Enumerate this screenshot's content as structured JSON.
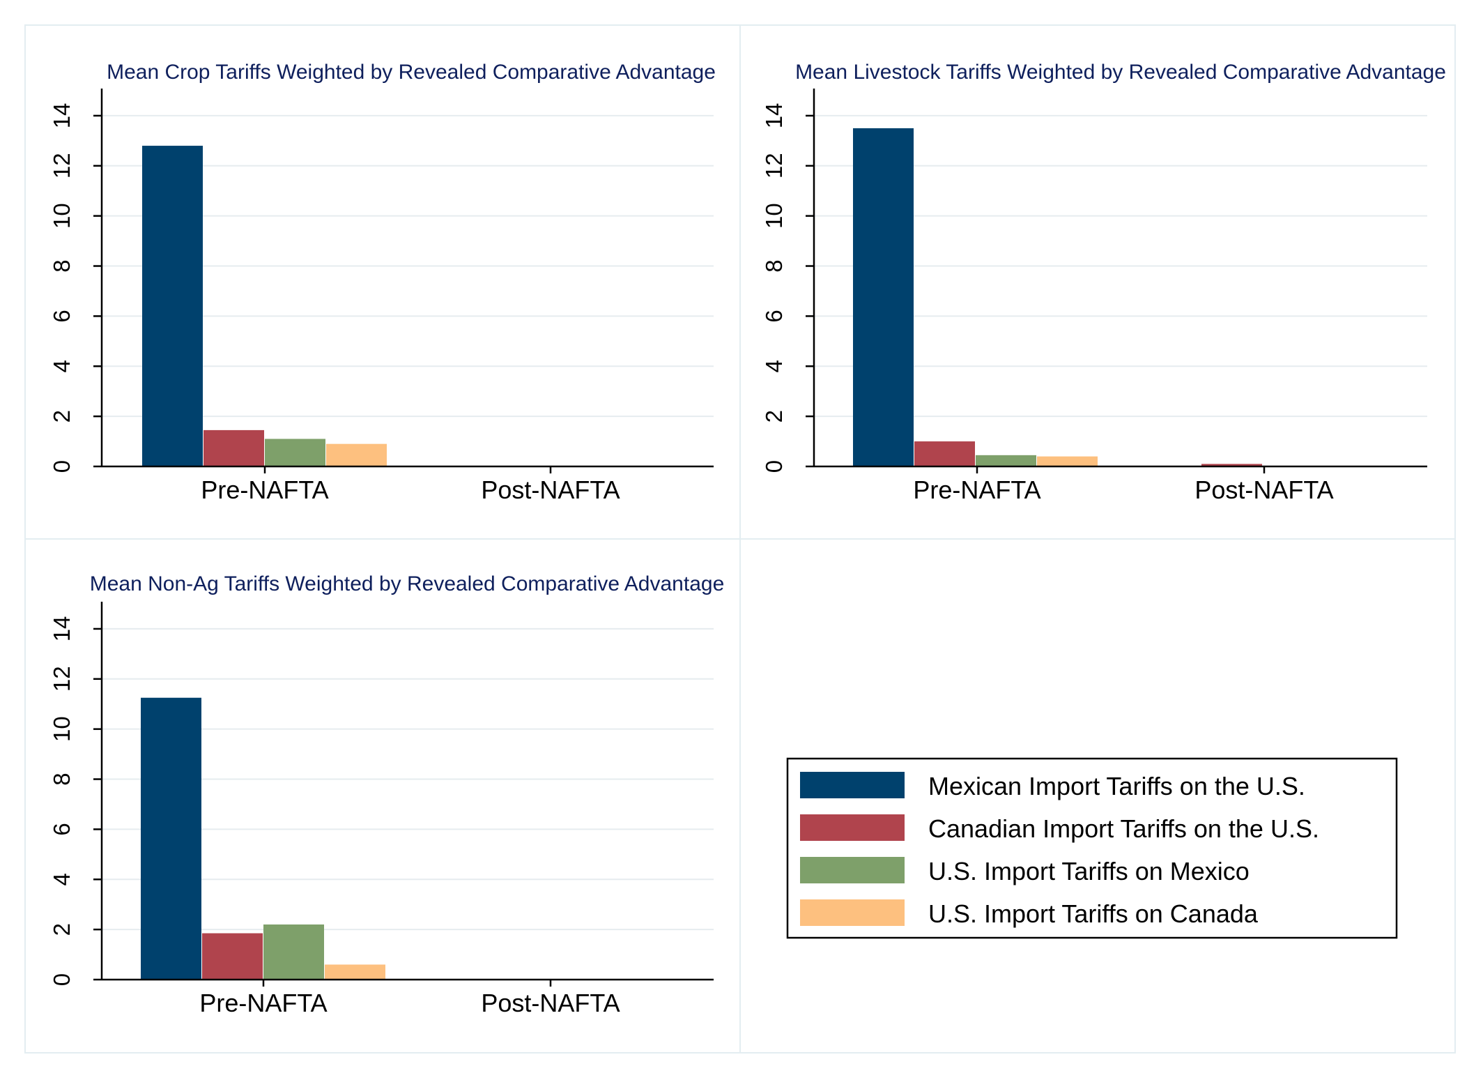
{
  "chart_data": [
    {
      "type": "bar",
      "title": "Mean Crop Tariffs Weighted by Revealed Comparative Advantage",
      "categories": [
        "Pre-NAFTA",
        "Post-NAFTA"
      ],
      "yticks": [
        "0",
        "2",
        "4",
        "6",
        "8",
        "10",
        "12",
        "14"
      ],
      "ylim": [
        0,
        15
      ],
      "grid": true,
      "series": [
        {
          "name": "Mexican Import Tariffs on the U.S.",
          "values": [
            12.8,
            0
          ]
        },
        {
          "name": "Canadian Import Tariffs on the U.S.",
          "values": [
            1.45,
            0
          ]
        },
        {
          "name": "U.S. Import Tariffs on Mexico",
          "values": [
            1.1,
            0
          ]
        },
        {
          "name": "U.S. Import Tariffs on Canada",
          "values": [
            0.9,
            0
          ]
        }
      ]
    },
    {
      "type": "bar",
      "title": "Mean Livestock Tariffs Weighted by Revealed Comparative Advantage",
      "categories": [
        "Pre-NAFTA",
        "Post-NAFTA"
      ],
      "yticks": [
        "0",
        "2",
        "4",
        "6",
        "8",
        "10",
        "12",
        "14"
      ],
      "ylim": [
        0,
        15
      ],
      "grid": true,
      "series": [
        {
          "name": "Mexican Import Tariffs on the U.S.",
          "values": [
            13.5,
            0
          ]
        },
        {
          "name": "Canadian Import Tariffs on the U.S.",
          "values": [
            1.0,
            0.1
          ]
        },
        {
          "name": "U.S. Import Tariffs on Mexico",
          "values": [
            0.45,
            0
          ]
        },
        {
          "name": "U.S. Import Tariffs on Canada",
          "values": [
            0.4,
            0
          ]
        }
      ]
    },
    {
      "type": "bar",
      "title": "Mean Non-Ag Tariffs Weighted by Revealed Comparative Advantage",
      "categories": [
        "Pre-NAFTA",
        "Post-NAFTA"
      ],
      "yticks": [
        "0",
        "2",
        "4",
        "6",
        "8",
        "10",
        "12",
        "14"
      ],
      "ylim": [
        0,
        15
      ],
      "grid": true,
      "series": [
        {
          "name": "Mexican Import Tariffs on the U.S.",
          "values": [
            11.25,
            0
          ]
        },
        {
          "name": "Canadian Import Tariffs on the U.S.",
          "values": [
            1.85,
            0
          ]
        },
        {
          "name": "U.S. Import Tariffs on Mexico",
          "values": [
            2.2,
            0
          ]
        },
        {
          "name": "U.S. Import Tariffs on Canada",
          "values": [
            0.6,
            0
          ]
        }
      ]
    }
  ],
  "legend": {
    "placement": "bottom-right",
    "entries": [
      {
        "label": "Mexican Import Tariffs on the U.S.",
        "color": "#00416d"
      },
      {
        "label": "Canadian Import Tariffs on the U.S.",
        "color": "#b0444d"
      },
      {
        "label": "U.S. Import Tariffs on Mexico",
        "color": "#7ea06a"
      },
      {
        "label": "U.S. Import Tariffs on Canada",
        "color": "#fdc07f"
      }
    ]
  },
  "colors": {
    "series": [
      "#00416d",
      "#b0444d",
      "#7ea06a",
      "#fdc07f"
    ],
    "title": "#0e1f5c"
  }
}
